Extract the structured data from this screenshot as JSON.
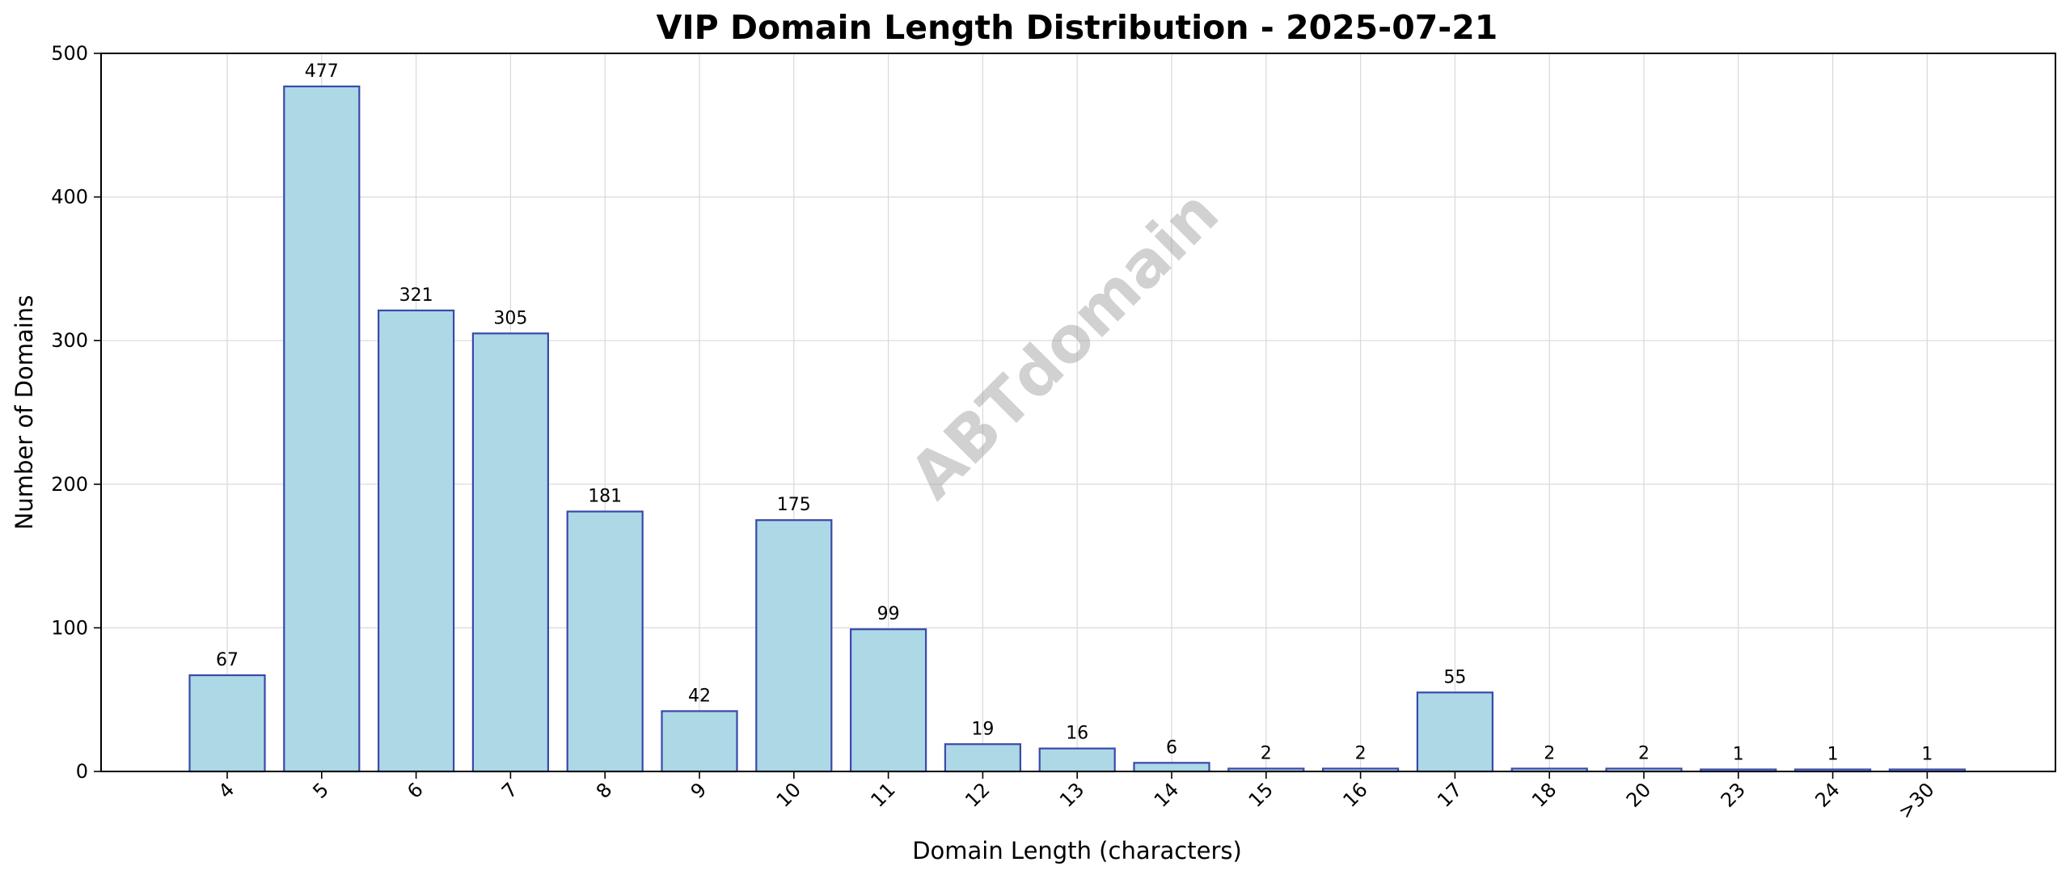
{
  "chart_data": {
    "type": "bar",
    "title": "VIP Domain Length Distribution - 2025-07-21",
    "xlabel": "Domain Length (characters)",
    "ylabel": "Number of Domains",
    "categories": [
      "4",
      "5",
      "6",
      "7",
      "8",
      "9",
      "10",
      "11",
      "12",
      "13",
      "14",
      "15",
      "16",
      "17",
      "18",
      "20",
      "23",
      "24",
      ">30"
    ],
    "values": [
      67,
      477,
      321,
      305,
      181,
      42,
      175,
      99,
      19,
      16,
      6,
      2,
      2,
      55,
      2,
      2,
      1,
      1,
      1
    ],
    "ylim": [
      0,
      500
    ],
    "yticks": [
      0,
      100,
      200,
      300,
      400,
      500
    ],
    "grid": true,
    "colors": {
      "bar_fill": "#add8e6",
      "bar_edge": "#3949ab",
      "grid": "#d9d9d9"
    },
    "watermark": "ABTdomain"
  }
}
